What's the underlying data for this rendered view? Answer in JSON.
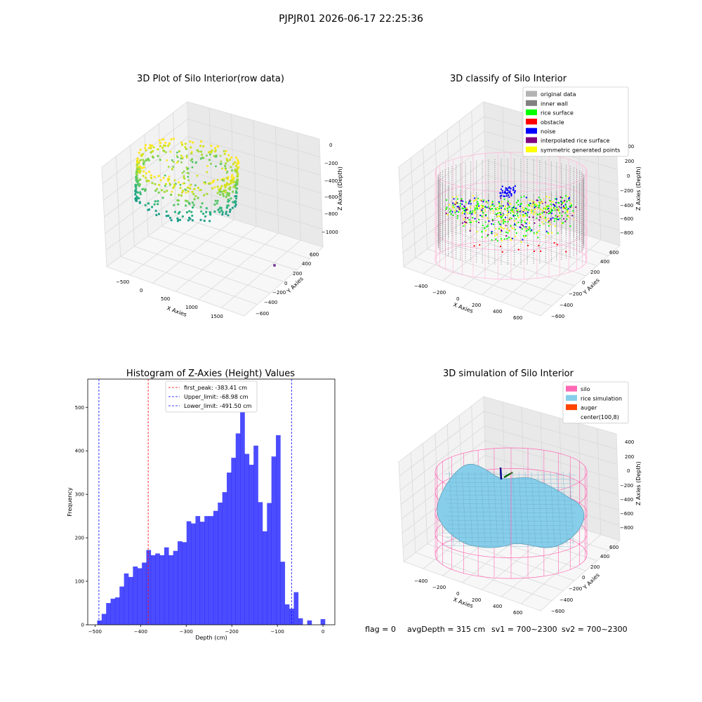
{
  "suptitle": "PJPJR01 2026-06-17 22:25:36",
  "footer": {
    "flag": "flag = 0",
    "avg": "avgDepth = 315 cm",
    "sv1": "sv1 = 700~2300",
    "sv2": "sv2 = 700~2300"
  },
  "chart_data": [
    {
      "type": "scatter",
      "title": "3D Plot of Silo Interior(row data)",
      "xlabel": "X Axies",
      "ylabel": "Y Axies",
      "zlabel": "Z Axies (Depth)",
      "x_ticks": [
        "−500",
        "0",
        "500",
        "1000",
        "1500"
      ],
      "y_ticks": [
        "−600",
        "−400",
        "−200",
        "0",
        "200",
        "400",
        "600"
      ],
      "z_ticks": [
        "0",
        "−200",
        "−400",
        "−600",
        "−800",
        "−1000"
      ],
      "xlim": [
        -600,
        1700
      ],
      "ylim": [
        -650,
        650
      ],
      "zlim": [
        -1100,
        50
      ],
      "colormap": "viridis",
      "outlier_point": {
        "x": 1500,
        "y": -100,
        "z": -1000
      }
    },
    {
      "type": "scatter",
      "title": "3D classify of Silo Interior",
      "xlabel": "X Axies",
      "ylabel": "Y Axies",
      "zlabel": "Z Axies (Depth)",
      "x_ticks": [
        "−400",
        "−200",
        "0",
        "200",
        "400",
        "600"
      ],
      "y_ticks": [
        "−600",
        "−400",
        "−200",
        "0",
        "200",
        "400",
        "600"
      ],
      "z_ticks": [
        "200",
        "0",
        "−200",
        "−400",
        "−600",
        "−800"
      ],
      "legend_position": "top-right",
      "legend": [
        {
          "label": "original data",
          "color": "#b3b3b3"
        },
        {
          "label": "inner wall",
          "color": "#808080"
        },
        {
          "label": "rice surface",
          "color": "#00ff00"
        },
        {
          "label": "obstacle",
          "color": "#ff0000"
        },
        {
          "label": "noise",
          "color": "#0000ff"
        },
        {
          "label": "interpolated rice surface",
          "color": "#800080"
        },
        {
          "label": "symmetric generated points",
          "color": "#ffff00"
        }
      ]
    },
    {
      "type": "bar",
      "title": "Histogram of Z-Axies (Height) Values",
      "xlabel": "Depth (cm)",
      "ylabel": "Frequency",
      "xlim": [
        -516,
        26
      ],
      "ylim": [
        0,
        565
      ],
      "x_ticks": [
        -500,
        -400,
        -300,
        -200,
        -100,
        0
      ],
      "y_ticks": [
        0,
        100,
        200,
        300,
        400,
        500
      ],
      "bin_width": 9.8,
      "bin_start": -495.3,
      "values": [
        10,
        25,
        50,
        60,
        63,
        88,
        118,
        110,
        134,
        130,
        143,
        172,
        160,
        164,
        160,
        178,
        160,
        170,
        192,
        190,
        238,
        233,
        250,
        237,
        250,
        250,
        262,
        281,
        305,
        350,
        384,
        440,
        538,
        393,
        368,
        412,
        282,
        215,
        280,
        387,
        436,
        145,
        47,
        37,
        75,
        15,
        0,
        10,
        0,
        0,
        13
      ],
      "bar_color": "#0000ff",
      "legend_position": "top-center",
      "lines": [
        {
          "label": "first_peak: -383.41 cm",
          "x": -383.41,
          "color": "#ff0000"
        },
        {
          "label": "Upper_limit: -68.98 cm",
          "x": -68.98,
          "color": "#0000ff"
        },
        {
          "label": "Lower_limit: -491.50 cm",
          "x": -491.5,
          "color": "#0000ff"
        }
      ]
    },
    {
      "type": "surface",
      "title": "3D simulation of Silo Interior",
      "xlabel": "X Axies",
      "ylabel": "Y Axies",
      "zlabel": "Z Axies (Depth)",
      "x_ticks": [
        "−400",
        "−200",
        "0",
        "200",
        "400",
        "600"
      ],
      "y_ticks": [
        "−600",
        "−400",
        "−200",
        "0",
        "200",
        "400",
        "600"
      ],
      "z_ticks": [
        "400",
        "200",
        "0",
        "−200",
        "−400",
        "−600",
        "−800"
      ],
      "legend_position": "top-right",
      "legend": [
        {
          "label": "silo",
          "color": "#ff69b4"
        },
        {
          "label": "rice simulation",
          "color": "#87ceeb"
        },
        {
          "label": "auger",
          "color": "#ff4500"
        },
        {
          "label": "center(100,8)",
          "color": "#ffffff"
        }
      ]
    }
  ]
}
